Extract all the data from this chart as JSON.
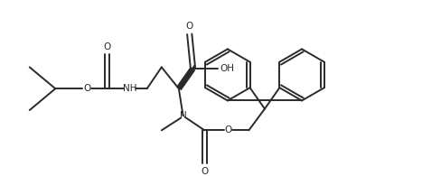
{
  "bg_color": "#ffffff",
  "line_color": "#2a2a2a",
  "line_width": 1.4,
  "figsize": [
    4.67,
    1.95
  ],
  "dpi": 100,
  "xlim": [
    0,
    9.34
  ],
  "ylim": [
    0,
    3.9
  ]
}
